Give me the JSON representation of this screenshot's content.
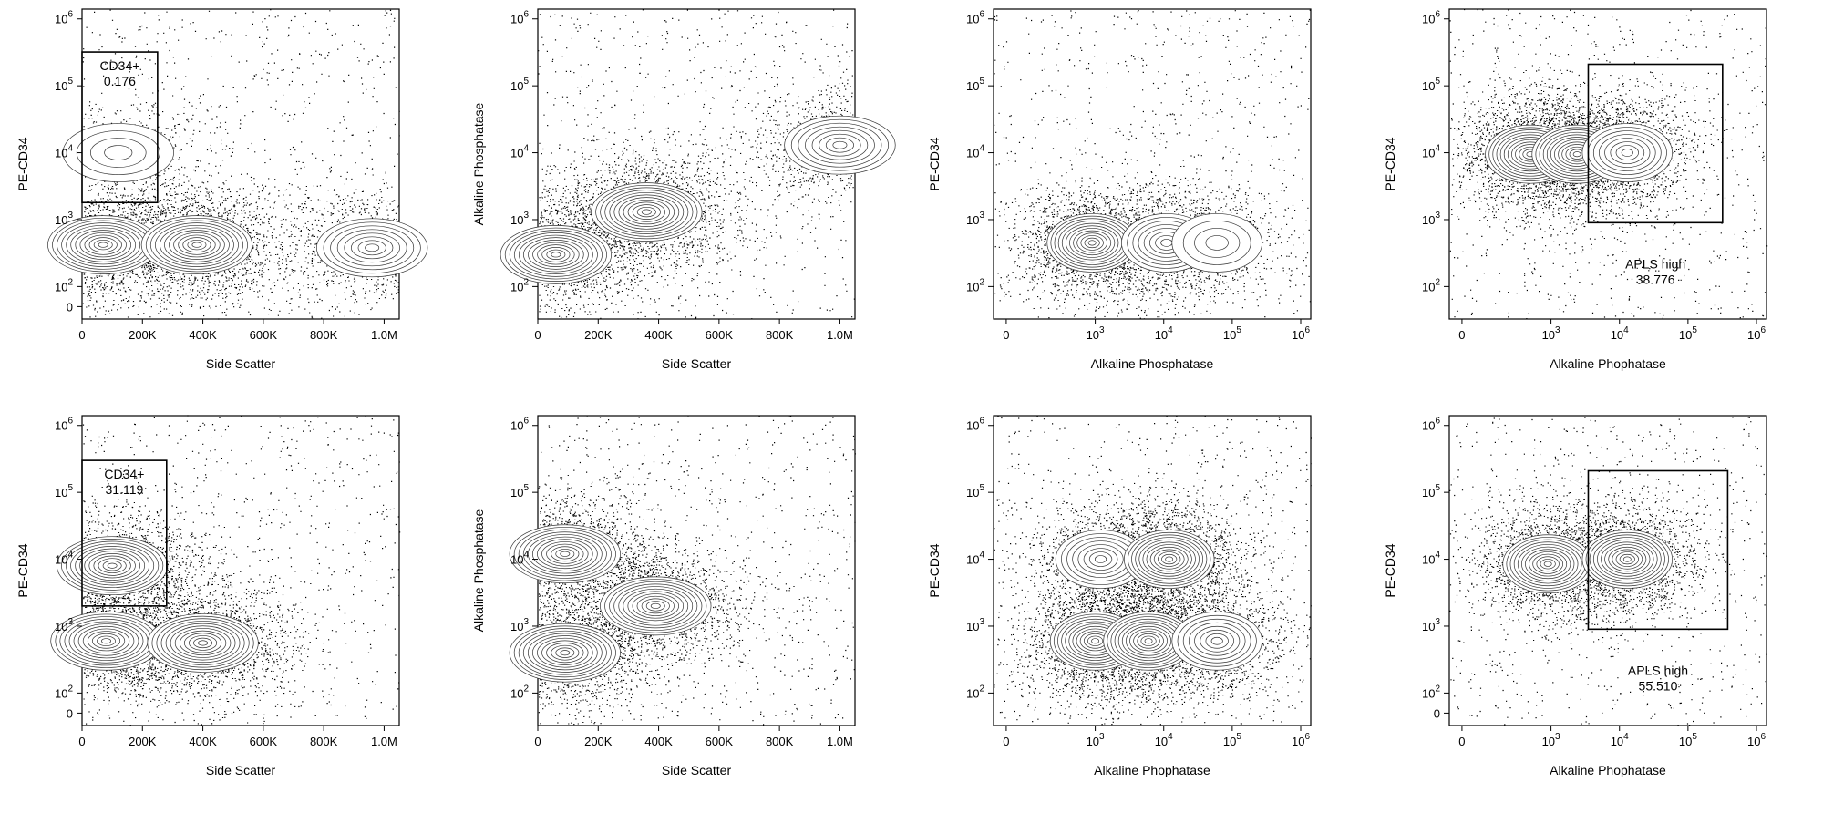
{
  "chart_data": [
    {
      "id": "p1",
      "type": "contour-scatter",
      "xlabel": "Side Scatter",
      "ylabel": "PE-CD34",
      "x_scale": "linear",
      "y_scale": "biex",
      "x_ticks": [
        "0",
        "200K",
        "400K",
        "600K",
        "800K",
        "1.0M"
      ],
      "y_ticks": [
        {
          "base": "",
          "exp": "",
          "label": "0"
        },
        {
          "base": "10",
          "exp": "2"
        },
        {
          "base": "10",
          "exp": "3"
        },
        {
          "base": "10",
          "exp": "4"
        },
        {
          "base": "10",
          "exp": "5"
        },
        {
          "base": "10",
          "exp": "6"
        }
      ],
      "gate": {
        "name": "CD34+",
        "value": "0.176",
        "x_range": [
          -10,
          250000
        ],
        "y_range": [
          1800,
          320000
        ]
      },
      "populations": [
        {
          "x": 70000,
          "y": 420,
          "density": "high"
        },
        {
          "x": 380000,
          "y": 420,
          "density": "high"
        },
        {
          "x": 960000,
          "y": 380,
          "density": "medium"
        },
        {
          "x": 120000,
          "y": 10000,
          "density": "low"
        }
      ]
    },
    {
      "id": "p2",
      "type": "contour-scatter",
      "xlabel": "Side Scatter",
      "ylabel": "Alkaline Phosphatase",
      "x_scale": "linear",
      "y_scale": "biex",
      "x_ticks": [
        "0",
        "200K",
        "400K",
        "600K",
        "800K",
        "1.0M"
      ],
      "y_ticks": [
        {
          "base": "10",
          "exp": "2"
        },
        {
          "base": "10",
          "exp": "3"
        },
        {
          "base": "10",
          "exp": "4"
        },
        {
          "base": "10",
          "exp": "5"
        },
        {
          "base": "10",
          "exp": "6"
        }
      ],
      "populations": [
        {
          "x": 60000,
          "y": 300,
          "density": "high"
        },
        {
          "x": 360000,
          "y": 1300,
          "density": "high"
        },
        {
          "x": 1000000,
          "y": 13000,
          "density": "medium"
        }
      ]
    },
    {
      "id": "p3",
      "type": "contour-scatter",
      "xlabel": "Alkaline Phosphatase",
      "ylabel": "PE-CD34",
      "x_scale": "biex",
      "y_scale": "biex",
      "x_ticks": [
        {
          "base": "",
          "exp": "",
          "label": "0"
        },
        {
          "base": "10",
          "exp": "3"
        },
        {
          "base": "10",
          "exp": "4"
        },
        {
          "base": "10",
          "exp": "5"
        },
        {
          "base": "10",
          "exp": "6"
        }
      ],
      "y_ticks": [
        {
          "base": "10",
          "exp": "2"
        },
        {
          "base": "10",
          "exp": "3"
        },
        {
          "base": "10",
          "exp": "4"
        },
        {
          "base": "10",
          "exp": "5"
        },
        {
          "base": "10",
          "exp": "6"
        }
      ],
      "populations": [
        {
          "x": 900,
          "y": 450,
          "density": "high"
        },
        {
          "x": 11000,
          "y": 450,
          "density": "medium"
        },
        {
          "x": 60000,
          "y": 450,
          "density": "low"
        }
      ]
    },
    {
      "id": "p4",
      "type": "contour-scatter",
      "xlabel": "Alkaline Phophatase",
      "ylabel": "PE-CD34",
      "x_scale": "biex",
      "y_scale": "biex",
      "x_ticks": [
        {
          "base": "",
          "exp": "",
          "label": "0"
        },
        {
          "base": "10",
          "exp": "3"
        },
        {
          "base": "10",
          "exp": "4"
        },
        {
          "base": "10",
          "exp": "5"
        },
        {
          "base": "10",
          "exp": "6"
        }
      ],
      "y_ticks": [
        {
          "base": "10",
          "exp": "2"
        },
        {
          "base": "10",
          "exp": "3"
        },
        {
          "base": "10",
          "exp": "4"
        },
        {
          "base": "10",
          "exp": "5"
        },
        {
          "base": "10",
          "exp": "6"
        }
      ],
      "gate": {
        "name": "APLS high",
        "value": "38.776",
        "x_range": [
          3500,
          320000
        ],
        "y_range": [
          900,
          210000
        ]
      },
      "populations": [
        {
          "x": 500,
          "y": 9500,
          "density": "high"
        },
        {
          "x": 2400,
          "y": 9500,
          "density": "high"
        },
        {
          "x": 13000,
          "y": 10000,
          "density": "medium"
        }
      ]
    },
    {
      "id": "p5",
      "type": "contour-scatter",
      "xlabel": "Side Scatter",
      "ylabel": "PE-CD34",
      "x_scale": "linear",
      "y_scale": "biex",
      "x_ticks": [
        "0",
        "200K",
        "400K",
        "600K",
        "800K",
        "1.0M"
      ],
      "y_ticks": [
        {
          "base": "",
          "exp": "",
          "label": "0"
        },
        {
          "base": "10",
          "exp": "2"
        },
        {
          "base": "10",
          "exp": "3"
        },
        {
          "base": "10",
          "exp": "4"
        },
        {
          "base": "10",
          "exp": "5"
        },
        {
          "base": "10",
          "exp": "6"
        }
      ],
      "gate": {
        "name": "CD34+",
        "value": "31.119",
        "x_range": [
          -10,
          280000
        ],
        "y_range": [
          2000,
          300000
        ]
      },
      "populations": [
        {
          "x": 100000,
          "y": 8000,
          "density": "high"
        },
        {
          "x": 80000,
          "y": 600,
          "density": "high"
        },
        {
          "x": 400000,
          "y": 560,
          "density": "high"
        }
      ]
    },
    {
      "id": "p6",
      "type": "contour-scatter",
      "xlabel": "Side Scatter",
      "ylabel": "Alkaline Phosphatase",
      "x_scale": "linear",
      "y_scale": "biex",
      "x_ticks": [
        "0",
        "200K",
        "400K",
        "600K",
        "800K",
        "1.0M"
      ],
      "y_ticks": [
        {
          "base": "10",
          "exp": "2"
        },
        {
          "base": "10",
          "exp": "3"
        },
        {
          "base": "10",
          "exp": "4"
        },
        {
          "base": "10",
          "exp": "5"
        },
        {
          "base": "10",
          "exp": "6"
        }
      ],
      "populations": [
        {
          "x": 90000,
          "y": 12000,
          "density": "high"
        },
        {
          "x": 90000,
          "y": 400,
          "density": "high"
        },
        {
          "x": 390000,
          "y": 2000,
          "density": "high"
        }
      ]
    },
    {
      "id": "p7",
      "type": "contour-scatter",
      "xlabel": "Alkaline Phophatase",
      "ylabel": "PE-CD34",
      "x_scale": "biex",
      "y_scale": "biex",
      "x_ticks": [
        {
          "base": "",
          "exp": "",
          "label": "0"
        },
        {
          "base": "10",
          "exp": "3"
        },
        {
          "base": "10",
          "exp": "4"
        },
        {
          "base": "10",
          "exp": "5"
        },
        {
          "base": "10",
          "exp": "6"
        }
      ],
      "y_ticks": [
        {
          "base": "10",
          "exp": "2"
        },
        {
          "base": "10",
          "exp": "3"
        },
        {
          "base": "10",
          "exp": "4"
        },
        {
          "base": "10",
          "exp": "5"
        },
        {
          "base": "10",
          "exp": "6"
        }
      ],
      "populations": [
        {
          "x": 1200,
          "y": 10000,
          "density": "medium"
        },
        {
          "x": 12000,
          "y": 10000,
          "density": "high"
        },
        {
          "x": 1000,
          "y": 600,
          "density": "high"
        },
        {
          "x": 6000,
          "y": 600,
          "density": "high"
        },
        {
          "x": 60000,
          "y": 600,
          "density": "medium"
        }
      ]
    },
    {
      "id": "p8",
      "type": "contour-scatter",
      "xlabel": "Alkaline Phophatase",
      "ylabel": "PE-CD34",
      "x_scale": "biex",
      "y_scale": "biex",
      "x_ticks": [
        {
          "base": "",
          "exp": "",
          "label": "0"
        },
        {
          "base": "10",
          "exp": "3"
        },
        {
          "base": "10",
          "exp": "4"
        },
        {
          "base": "10",
          "exp": "5"
        },
        {
          "base": "10",
          "exp": "6"
        }
      ],
      "y_ticks": [
        {
          "base": "",
          "exp": "",
          "label": "0"
        },
        {
          "base": "10",
          "exp": "2"
        },
        {
          "base": "10",
          "exp": "3"
        },
        {
          "base": "10",
          "exp": "4"
        },
        {
          "base": "10",
          "exp": "5"
        },
        {
          "base": "10",
          "exp": "6"
        }
      ],
      "gate": {
        "name": "APLS high",
        "value": "55.510",
        "x_range": [
          3500,
          380000
        ],
        "y_range": [
          900,
          210000
        ]
      },
      "populations": [
        {
          "x": 900,
          "y": 8500,
          "density": "high"
        },
        {
          "x": 13000,
          "y": 10000,
          "density": "high"
        }
      ]
    }
  ]
}
